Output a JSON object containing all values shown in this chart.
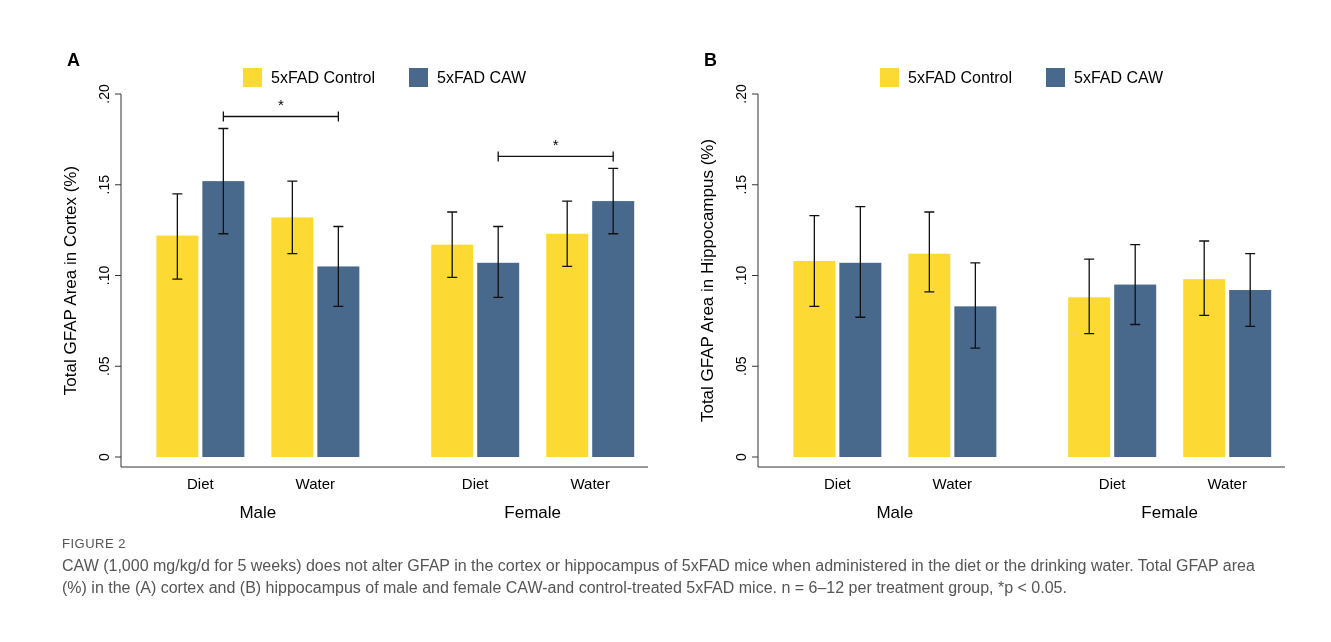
{
  "chart_data": [
    {
      "type": "bar",
      "title": "A",
      "ylabel": "Total GFAP Area in Cortex (%)",
      "categories": [
        "Diet",
        "Water",
        "Diet",
        "Water"
      ],
      "series": [
        {
          "name": "5xFAD Control",
          "color": "#fdda33",
          "values": [
            0.122,
            0.132,
            0.117,
            0.123
          ],
          "errors": [
            [
              0.098,
              0.145
            ],
            [
              0.112,
              0.152
            ],
            [
              0.099,
              0.135
            ],
            [
              0.105,
              0.141
            ]
          ]
        },
        {
          "name": "5xFAD CAW",
          "color": "#48698c",
          "values": [
            0.152,
            0.105,
            0.107,
            0.141
          ],
          "errors": [
            [
              0.123,
              0.181
            ],
            [
              0.083,
              0.127
            ],
            [
              0.088,
              0.127
            ],
            [
              0.123,
              0.159
            ]
          ]
        }
      ],
      "ylim": [
        0,
        0.2
      ],
      "yticks": [
        0,
        {
          "value": 0.05,
          "label": ".05"
        },
        {
          "value": 0.1,
          "label": ".10"
        },
        {
          "value": 0.15,
          "label": ".15"
        },
        {
          "value": 0.2,
          "label": ".20"
        }
      ],
      "legend": "top",
      "annotations": [
        "Male",
        "Female",
        "*",
        "*",
        "FIGURE 2",
        "CAW (1,000 mg/kg/d for 5 weeks) does not alter GFAP in the cortex or hippocampus of 5xFAD mice when administered in the diet or the drinking water. Total GFAP area (%) in the (A) cortex and (B) hippocampus of male and female CAW-and control-treated 5xFAD mice. n = 6–12 per treatment group, *p < 0.05."
      ]
    },
    {
      "type": "bar",
      "title": "B",
      "ylabel": "Total GFAP Area in Hippocampus (%)",
      "categories": [
        "Diet",
        "Water",
        "Diet",
        "Water"
      ],
      "series": [
        {
          "name": "5xFAD Control",
          "color": "#fdda33",
          "values": [
            0.108,
            0.112,
            0.088,
            0.098
          ],
          "errors": [
            [
              0.083,
              0.133
            ],
            [
              0.091,
              0.135
            ],
            [
              0.068,
              0.109
            ],
            [
              0.078,
              0.119
            ]
          ]
        },
        {
          "name": "5xFAD CAW",
          "color": "#48698c",
          "values": [
            0.107,
            0.083,
            0.095,
            0.092
          ],
          "errors": [
            [
              0.077,
              0.138
            ],
            [
              0.06,
              0.107
            ],
            [
              0.073,
              0.117
            ],
            [
              0.072,
              0.112
            ]
          ]
        }
      ],
      "ylim": [
        0,
        0.2
      ],
      "yticks": [
        0,
        {
          "value": 0.05,
          "label": ".05"
        },
        {
          "value": 0.1,
          "label": ".10"
        },
        {
          "value": 0.15,
          "label": ".15"
        },
        {
          "value": 0.2,
          "label": ".20"
        }
      ],
      "legend": "top",
      "annotations": [
        "Male",
        "Female"
      ]
    }
  ]
}
